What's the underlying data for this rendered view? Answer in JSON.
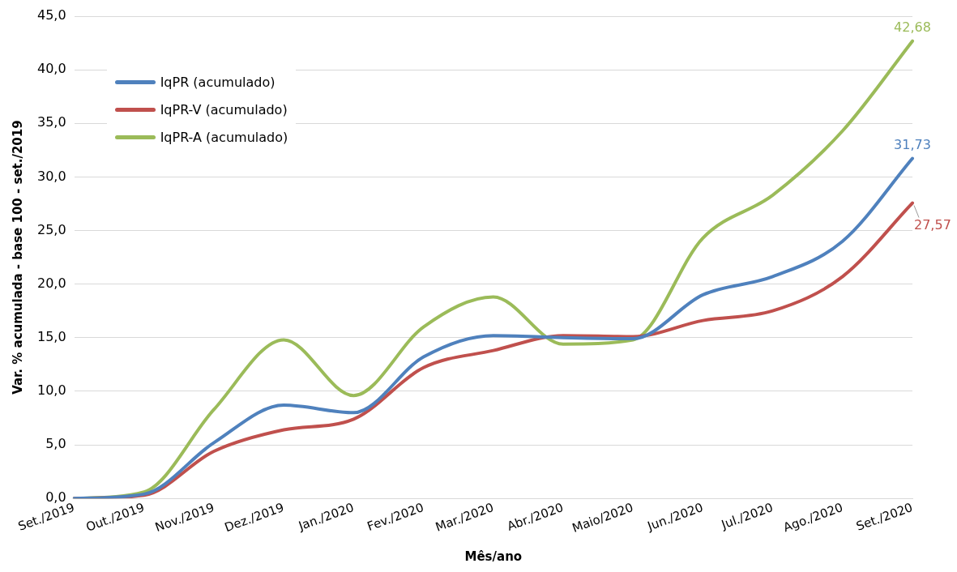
{
  "chart_data": {
    "type": "line",
    "xlabel": "Mês/ano",
    "ylabel": "Var. % acumulada - base 100 - set./2019",
    "categories": [
      "Set./2019",
      "Out./2019",
      "Nov./2019",
      "Dez./2019",
      "Jan./2020",
      "Fev./2020",
      "Mar./2020",
      "Abr./2020",
      "Maio/2020",
      "Jun./2020",
      "Jul./2020",
      "Ago./2020",
      "Set./2020"
    ],
    "series": [
      {
        "name": "IqPR (acumulado)",
        "color": "#4f81bd",
        "values": [
          0,
          0.4,
          5.2,
          8.7,
          8.0,
          13.2,
          15.2,
          15.0,
          14.9,
          19.0,
          20.7,
          24.0,
          31.73
        ],
        "value_labels": [
          null,
          null,
          null,
          null,
          null,
          null,
          null,
          null,
          null,
          null,
          null,
          null,
          "31,73"
        ]
      },
      {
        "name": "IqPR-V  (acumulado)",
        "color": "#c0504d",
        "values": [
          0,
          0.3,
          4.4,
          6.4,
          7.4,
          12.2,
          13.8,
          15.2,
          15.1,
          16.6,
          17.5,
          20.7,
          27.57
        ],
        "value_labels": [
          null,
          null,
          null,
          null,
          null,
          null,
          null,
          null,
          null,
          null,
          null,
          null,
          "27,57"
        ]
      },
      {
        "name": "IqPR-A  (acumulado)",
        "color": "#9bbb59",
        "values": [
          0,
          0.6,
          8.3,
          14.8,
          9.6,
          16.0,
          18.8,
          14.4,
          14.8,
          24.3,
          28.3,
          34.3,
          42.68
        ],
        "value_labels": [
          null,
          null,
          null,
          null,
          null,
          null,
          null,
          null,
          null,
          null,
          null,
          null,
          "42,68"
        ]
      }
    ],
    "ylim": [
      0,
      45
    ],
    "yticks": [
      {
        "value": 0,
        "label": "0,0"
      },
      {
        "value": 5,
        "label": "5,0"
      },
      {
        "value": 10,
        "label": "10,0"
      },
      {
        "value": 15,
        "label": "15,0"
      },
      {
        "value": 20,
        "label": "20,0"
      },
      {
        "value": 25,
        "label": "25,0"
      },
      {
        "value": 30,
        "label": "30,0"
      },
      {
        "value": 35,
        "label": "35,0"
      },
      {
        "value": 40,
        "label": "40,0"
      },
      {
        "value": 45,
        "label": "45,0"
      }
    ],
    "grid": "y",
    "legend": "top left",
    "marker": "none",
    "line_style": "solid"
  }
}
